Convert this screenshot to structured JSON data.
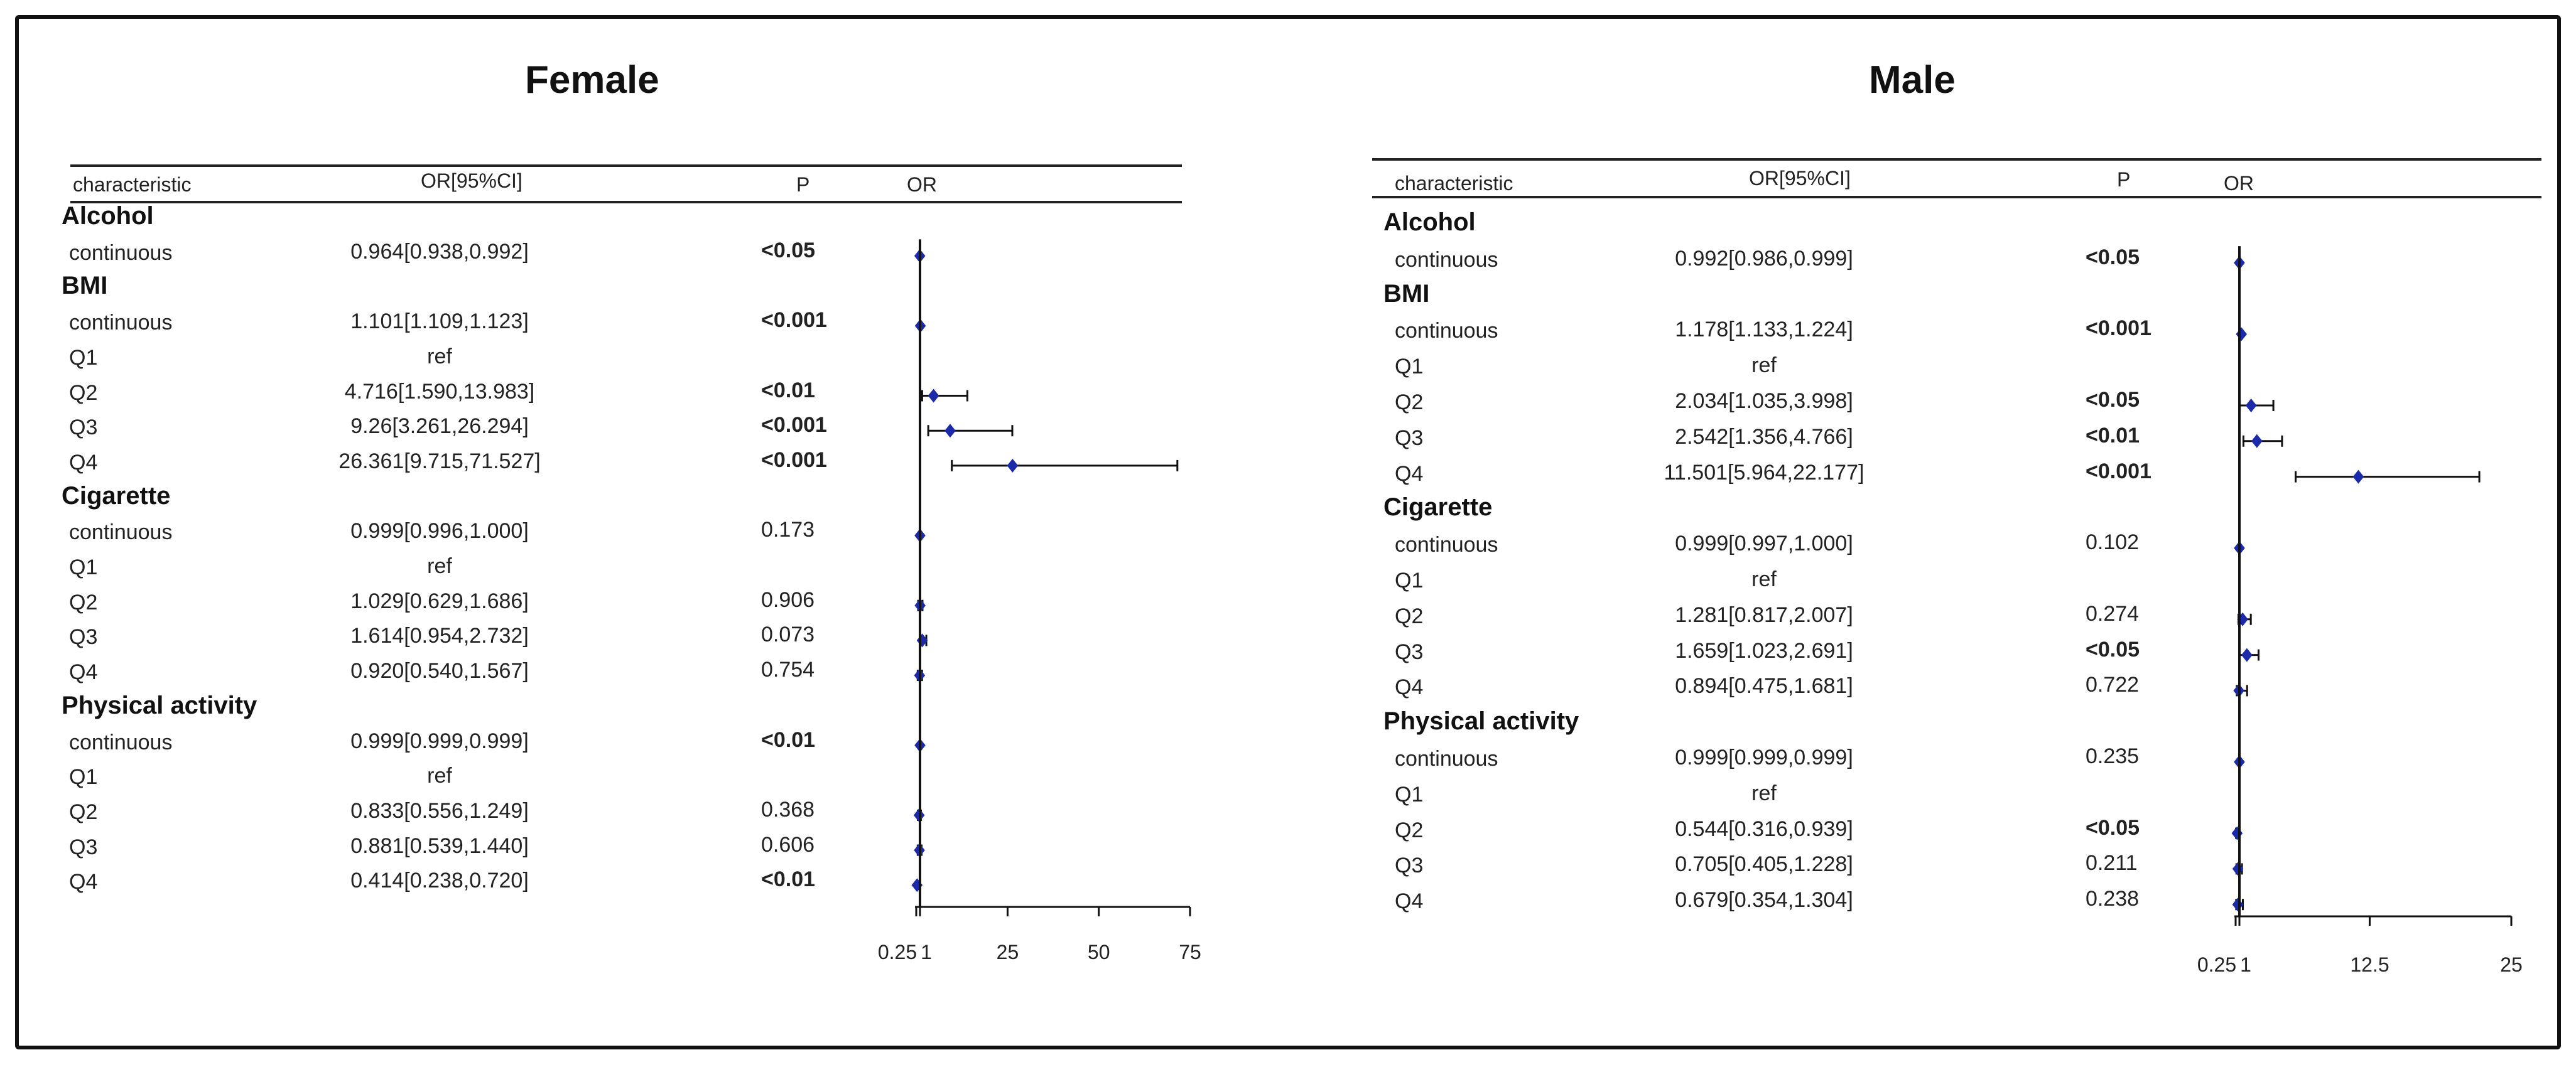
{
  "columns": {
    "characteristic": "characteristic",
    "or_ci": "OR[95%CI]",
    "p": "P",
    "or": "OR"
  },
  "colors": {
    "marker": "#1a2aa8",
    "line": "#111111"
  },
  "panels": [
    {
      "title": "Female",
      "axis": {
        "ticks": [
          0.25,
          1,
          25,
          50,
          75
        ],
        "tick_labels": [
          "0.25",
          "1",
          "25",
          "50",
          "75"
        ],
        "xlim": [
          0.25,
          75
        ]
      },
      "rows": [
        {
          "type": "section",
          "label": "Alcohol"
        },
        {
          "type": "row",
          "label": "continuous",
          "or_text": "0.964[0.938,0.992]",
          "p": "<0.05",
          "bold": true,
          "or": 0.964,
          "lo": 0.938,
          "hi": 0.992
        },
        {
          "type": "section",
          "label": "BMI"
        },
        {
          "type": "row",
          "label": "continuous",
          "or_text": "1.101[1.109,1.123]",
          "p": "<0.001",
          "bold": true,
          "or": 1.101,
          "lo": 1.109,
          "hi": 1.123
        },
        {
          "type": "row",
          "label": "Q1",
          "or_text": "ref",
          "p": "",
          "bold": false
        },
        {
          "type": "row",
          "label": "Q2",
          "or_text": "4.716[1.590,13.983]",
          "p": "<0.01",
          "bold": true,
          "or": 4.716,
          "lo": 1.59,
          "hi": 13.983
        },
        {
          "type": "row",
          "label": "Q3",
          "or_text": "9.26[3.261,26.294]",
          "p": "<0.001",
          "bold": true,
          "or": 9.26,
          "lo": 3.261,
          "hi": 26.294
        },
        {
          "type": "row",
          "label": "Q4",
          "or_text": "26.361[9.715,71.527]",
          "p": "<0.001",
          "bold": true,
          "or": 26.361,
          "lo": 9.715,
          "hi": 71.527
        },
        {
          "type": "section",
          "label": "Cigarette"
        },
        {
          "type": "row",
          "label": "continuous",
          "or_text": "0.999[0.996,1.000]",
          "p": "0.173",
          "bold": false,
          "or": 0.999,
          "lo": 0.996,
          "hi": 1.0
        },
        {
          "type": "row",
          "label": "Q1",
          "or_text": "ref",
          "p": "",
          "bold": false
        },
        {
          "type": "row",
          "label": "Q2",
          "or_text": "1.029[0.629,1.686]",
          "p": "0.906",
          "bold": false,
          "or": 1.029,
          "lo": 0.629,
          "hi": 1.686
        },
        {
          "type": "row",
          "label": "Q3",
          "or_text": "1.614[0.954,2.732]",
          "p": "0.073",
          "bold": false,
          "or": 1.614,
          "lo": 0.954,
          "hi": 2.732
        },
        {
          "type": "row",
          "label": "Q4",
          "or_text": "0.920[0.540,1.567]",
          "p": "0.754",
          "bold": false,
          "or": 0.92,
          "lo": 0.54,
          "hi": 1.567
        },
        {
          "type": "section",
          "label": "Physical activity"
        },
        {
          "type": "row",
          "label": "continuous",
          "or_text": "0.999[0.999,0.999]",
          "p": "<0.01",
          "bold": true,
          "or": 0.999,
          "lo": 0.999,
          "hi": 0.999
        },
        {
          "type": "row",
          "label": "Q1",
          "or_text": "ref",
          "p": "",
          "bold": false
        },
        {
          "type": "row",
          "label": "Q2",
          "or_text": "0.833[0.556,1.249]",
          "p": "0.368",
          "bold": false,
          "or": 0.833,
          "lo": 0.556,
          "hi": 1.249
        },
        {
          "type": "row",
          "label": "Q3",
          "or_text": "0.881[0.539,1.440]",
          "p": "0.606",
          "bold": false,
          "or": 0.881,
          "lo": 0.539,
          "hi": 1.44
        },
        {
          "type": "row",
          "label": "Q4",
          "or_text": "0.414[0.238,0.720]",
          "p": "<0.01",
          "bold": true,
          "or": 0.414,
          "lo": 0.238,
          "hi": 0.72
        }
      ]
    },
    {
      "title": "Male",
      "axis": {
        "ticks": [
          0.25,
          1,
          12.5,
          25
        ],
        "tick_labels": [
          "0.25",
          "1",
          "12.5",
          "25"
        ],
        "xlim": [
          0.25,
          25
        ]
      },
      "rows": [
        {
          "type": "section",
          "label": "Alcohol"
        },
        {
          "type": "row",
          "label": "continuous",
          "or_text": "0.992[0.986,0.999]",
          "p": "<0.05",
          "bold": true,
          "or": 0.992,
          "lo": 0.986,
          "hi": 0.999
        },
        {
          "type": "section",
          "label": "BMI"
        },
        {
          "type": "row",
          "label": "continuous",
          "or_text": "1.178[1.133,1.224]",
          "p": "<0.001",
          "bold": true,
          "or": 1.178,
          "lo": 1.133,
          "hi": 1.224
        },
        {
          "type": "row",
          "label": "Q1",
          "or_text": "ref",
          "p": "",
          "bold": false
        },
        {
          "type": "row",
          "label": "Q2",
          "or_text": "2.034[1.035,3.998]",
          "p": "<0.05",
          "bold": true,
          "or": 2.034,
          "lo": 1.035,
          "hi": 3.998
        },
        {
          "type": "row",
          "label": "Q3",
          "or_text": "2.542[1.356,4.766]",
          "p": "<0.01",
          "bold": true,
          "or": 2.542,
          "lo": 1.356,
          "hi": 4.766
        },
        {
          "type": "row",
          "label": "Q4",
          "or_text": "11.501[5.964,22.177]",
          "p": "<0.001",
          "bold": true,
          "or": 11.501,
          "lo": 5.964,
          "hi": 22.177
        },
        {
          "type": "section",
          "label": "Cigarette"
        },
        {
          "type": "row",
          "label": "continuous",
          "or_text": "0.999[0.997,1.000]",
          "p": "0.102",
          "bold": false,
          "or": 0.999,
          "lo": 0.997,
          "hi": 1.0
        },
        {
          "type": "row",
          "label": "Q1",
          "or_text": "ref",
          "p": "",
          "bold": false
        },
        {
          "type": "row",
          "label": "Q2",
          "or_text": "1.281[0.817,2.007]",
          "p": "0.274",
          "bold": false,
          "or": 1.281,
          "lo": 0.817,
          "hi": 2.007
        },
        {
          "type": "row",
          "label": "Q3",
          "or_text": "1.659[1.023,2.691]",
          "p": "<0.05",
          "bold": true,
          "or": 1.659,
          "lo": 1.023,
          "hi": 2.691
        },
        {
          "type": "row",
          "label": "Q4",
          "or_text": "0.894[0.475,1.681]",
          "p": "0.722",
          "bold": false,
          "or": 0.894,
          "lo": 0.475,
          "hi": 1.681
        },
        {
          "type": "section",
          "label": "Physical activity"
        },
        {
          "type": "row",
          "label": "continuous",
          "or_text": "0.999[0.999,0.999]",
          "p": "0.235",
          "bold": false,
          "or": 0.999,
          "lo": 0.999,
          "hi": 0.999
        },
        {
          "type": "row",
          "label": "Q1",
          "or_text": "ref",
          "p": "",
          "bold": false
        },
        {
          "type": "row",
          "label": "Q2",
          "or_text": "0.544[0.316,0.939]",
          "p": "<0.05",
          "bold": true,
          "or": 0.544,
          "lo": 0.316,
          "hi": 0.939
        },
        {
          "type": "row",
          "label": "Q3",
          "or_text": "0.705[0.405,1.228]",
          "p": "0.211",
          "bold": false,
          "or": 0.705,
          "lo": 0.405,
          "hi": 1.228
        },
        {
          "type": "row",
          "label": "Q4",
          "or_text": "0.679[0.354,1.304]",
          "p": "0.238",
          "bold": false,
          "or": 0.679,
          "lo": 0.354,
          "hi": 1.304
        }
      ]
    }
  ],
  "chart_data": [
    {
      "type": "forest",
      "title": "Female",
      "xlabel": "OR",
      "xlim": [
        0.25,
        75
      ],
      "categories": [
        "Alcohol continuous",
        "BMI continuous",
        "BMI Q2",
        "BMI Q3",
        "BMI Q4",
        "Cigarette continuous",
        "Cigarette Q2",
        "Cigarette Q3",
        "Cigarette Q4",
        "Physical activity continuous",
        "Physical activity Q2",
        "Physical activity Q3",
        "Physical activity Q4"
      ],
      "values": [
        0.964,
        1.101,
        4.716,
        9.26,
        26.361,
        0.999,
        1.029,
        1.614,
        0.92,
        0.999,
        0.833,
        0.881,
        0.414
      ],
      "ci_low": [
        0.938,
        1.109,
        1.59,
        3.261,
        9.715,
        0.996,
        0.629,
        0.954,
        0.54,
        0.999,
        0.556,
        0.539,
        0.238
      ],
      "ci_high": [
        0.992,
        1.123,
        13.983,
        26.294,
        71.527,
        1.0,
        1.686,
        2.732,
        1.567,
        0.999,
        1.249,
        1.44,
        0.72
      ]
    },
    {
      "type": "forest",
      "title": "Male",
      "xlabel": "OR",
      "xlim": [
        0.25,
        25
      ],
      "categories": [
        "Alcohol continuous",
        "BMI continuous",
        "BMI Q2",
        "BMI Q3",
        "BMI Q4",
        "Cigarette continuous",
        "Cigarette Q2",
        "Cigarette Q3",
        "Cigarette Q4",
        "Physical activity continuous",
        "Physical activity Q2",
        "Physical activity Q3",
        "Physical activity Q4"
      ],
      "values": [
        0.992,
        1.178,
        2.034,
        2.542,
        11.501,
        0.999,
        1.281,
        1.659,
        0.894,
        0.999,
        0.544,
        0.705,
        0.679
      ],
      "ci_low": [
        0.986,
        1.133,
        1.035,
        1.356,
        5.964,
        0.997,
        0.817,
        1.023,
        0.475,
        0.999,
        0.316,
        0.405,
        0.354
      ],
      "ci_high": [
        0.999,
        1.224,
        3.998,
        4.766,
        22.177,
        1.0,
        2.007,
        2.691,
        1.681,
        0.999,
        0.939,
        1.228,
        1.304
      ]
    }
  ]
}
